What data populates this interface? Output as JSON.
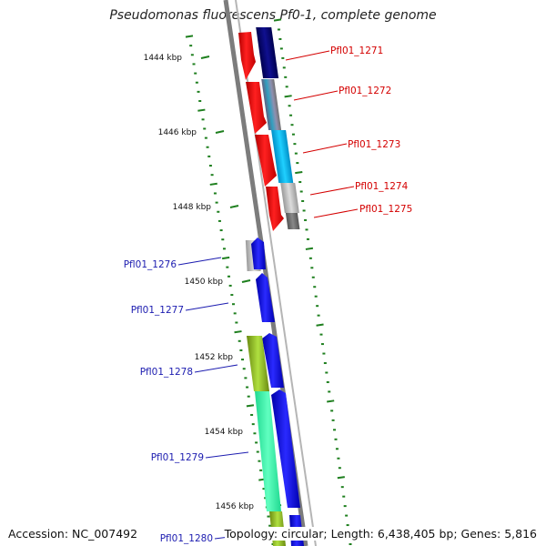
{
  "title": "Pseudomonas fluorescens Pf0-1, complete genome",
  "footer": {
    "accession": "Accession: NC_007492",
    "summary": "Topology: circular; Length: 6,438,405 bp; Genes: 5,816"
  },
  "colors": {
    "forward_label": "#d40000",
    "reverse_label": "#1c1cb0",
    "backbone": "#8a8a8a",
    "ticks": "#1e7f1e"
  },
  "scale_labels": [
    "1444 kbp",
    "1446 kbp",
    "1448 kbp",
    "1450 kbp",
    "1452 kbp",
    "1454 kbp",
    "1456 kbp"
  ],
  "gene_labels": [
    {
      "text": "Pfl01_1271",
      "strand": "forward"
    },
    {
      "text": "Pfl01_1272",
      "strand": "forward"
    },
    {
      "text": "Pfl01_1273",
      "strand": "forward"
    },
    {
      "text": "Pfl01_1274",
      "strand": "forward"
    },
    {
      "text": "Pfl01_1275",
      "strand": "forward"
    },
    {
      "text": "Pfl01_1276",
      "strand": "reverse"
    },
    {
      "text": "Pfl01_1277",
      "strand": "reverse"
    },
    {
      "text": "Pfl01_1278",
      "strand": "reverse"
    },
    {
      "text": "Pfl01_1279",
      "strand": "reverse"
    },
    {
      "text": "Pfl01_1280",
      "strand": "reverse"
    }
  ]
}
